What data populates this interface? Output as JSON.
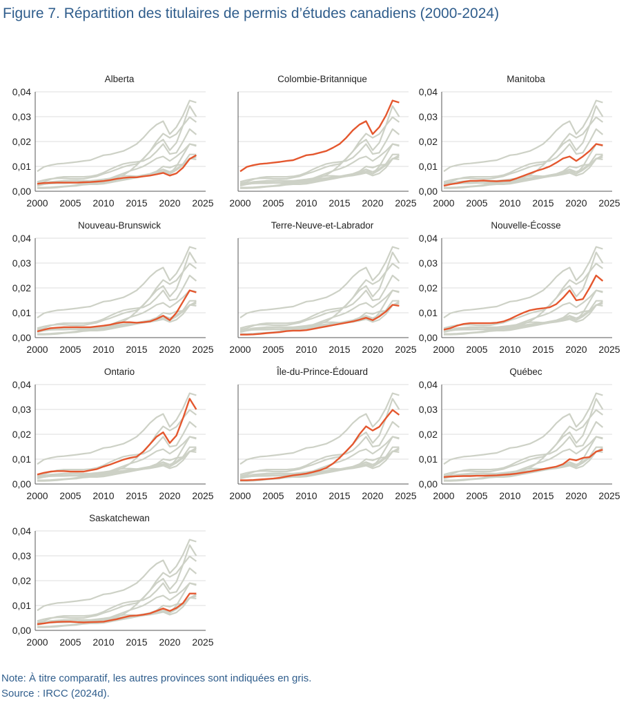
{
  "chart_data": {
    "type": "line",
    "title": "Figure 7. Répartition des titulaires de permis d’études canadiens (2000-2024)",
    "note": "Note: À titre comparatif, les autres provinces sont indiquées en gris.",
    "source": "Source : IRCC (2024d).",
    "x": [
      2000,
      2001,
      2002,
      2003,
      2004,
      2005,
      2006,
      2007,
      2008,
      2009,
      2010,
      2011,
      2012,
      2013,
      2014,
      2015,
      2016,
      2017,
      2018,
      2019,
      2020,
      2021,
      2022,
      2023,
      2024
    ],
    "xticks": [
      "2000",
      "2005",
      "2010",
      "2015",
      "2020",
      "2025"
    ],
    "yticks": [
      "0,00",
      "0,01",
      "0,02",
      "0,03",
      "0,04"
    ],
    "ylim": [
      0,
      0.04
    ],
    "xlim": [
      2000,
      2025
    ],
    "grid": true,
    "highlight_color": "#e4572e",
    "other_color": "#cdd1c6",
    "series": [
      {
        "name": "Alberta",
        "values": [
          0.003,
          0.0033,
          0.0034,
          0.0035,
          0.0035,
          0.0035,
          0.0035,
          0.0036,
          0.0037,
          0.0039,
          0.0041,
          0.0045,
          0.005,
          0.0054,
          0.0056,
          0.0056,
          0.006,
          0.0063,
          0.0068,
          0.0074,
          0.0063,
          0.0072,
          0.0095,
          0.013,
          0.0145
        ]
      },
      {
        "name": "Colombie-Britannique",
        "values": [
          0.008,
          0.0098,
          0.0105,
          0.011,
          0.0112,
          0.0115,
          0.0118,
          0.0122,
          0.0125,
          0.0135,
          0.0145,
          0.0148,
          0.0155,
          0.0162,
          0.0175,
          0.019,
          0.0215,
          0.0245,
          0.0268,
          0.0282,
          0.023,
          0.0258,
          0.0305,
          0.0365,
          0.0357
        ]
      },
      {
        "name": "Manitoba",
        "values": [
          0.0022,
          0.0028,
          0.0032,
          0.0038,
          0.0042,
          0.0042,
          0.0043,
          0.0041,
          0.004,
          0.0042,
          0.0043,
          0.0052,
          0.0062,
          0.0072,
          0.0082,
          0.009,
          0.01,
          0.0115,
          0.0132,
          0.014,
          0.0122,
          0.014,
          0.0162,
          0.019,
          0.0185
        ]
      },
      {
        "name": "Nouveau-Brunswick",
        "values": [
          0.0025,
          0.0032,
          0.0038,
          0.004,
          0.0042,
          0.0042,
          0.0042,
          0.0042,
          0.0042,
          0.0045,
          0.0048,
          0.0052,
          0.0058,
          0.0062,
          0.0062,
          0.006,
          0.0062,
          0.0065,
          0.0075,
          0.0088,
          0.007,
          0.01,
          0.0145,
          0.019,
          0.0182
        ]
      },
      {
        "name": "Terre-Neuve-et-Labrador",
        "values": [
          0.0012,
          0.0012,
          0.0013,
          0.0015,
          0.0018,
          0.002,
          0.0022,
          0.0026,
          0.0028,
          0.0028,
          0.003,
          0.0035,
          0.004,
          0.0045,
          0.005,
          0.0055,
          0.006,
          0.0065,
          0.0072,
          0.008,
          0.007,
          0.0085,
          0.0105,
          0.0132,
          0.0128
        ]
      },
      {
        "name": "Nouvelle-Écosse",
        "values": [
          0.0032,
          0.0038,
          0.0048,
          0.0055,
          0.0058,
          0.0058,
          0.0058,
          0.0058,
          0.006,
          0.0065,
          0.0075,
          0.0088,
          0.01,
          0.011,
          0.0115,
          0.0118,
          0.0122,
          0.0135,
          0.016,
          0.019,
          0.015,
          0.0155,
          0.02,
          0.025,
          0.0228
        ]
      },
      {
        "name": "Ontario",
        "values": [
          0.0038,
          0.0045,
          0.005,
          0.0052,
          0.0052,
          0.005,
          0.005,
          0.005,
          0.0055,
          0.006,
          0.007,
          0.0078,
          0.0088,
          0.0098,
          0.0105,
          0.011,
          0.013,
          0.016,
          0.019,
          0.0208,
          0.0165,
          0.0195,
          0.0265,
          0.0343,
          0.03
        ]
      },
      {
        "name": "Île-du-Prince-Édouard",
        "values": [
          0.0015,
          0.0015,
          0.0016,
          0.0018,
          0.002,
          0.0022,
          0.0025,
          0.003,
          0.0035,
          0.0038,
          0.0042,
          0.0048,
          0.0055,
          0.0065,
          0.0082,
          0.0105,
          0.0132,
          0.016,
          0.02,
          0.0232,
          0.0215,
          0.023,
          0.0265,
          0.0298,
          0.0278
        ]
      },
      {
        "name": "Québec",
        "values": [
          0.0028,
          0.003,
          0.0031,
          0.0032,
          0.0032,
          0.0033,
          0.0033,
          0.0034,
          0.0035,
          0.0037,
          0.0039,
          0.0042,
          0.0046,
          0.005,
          0.0055,
          0.006,
          0.0065,
          0.007,
          0.008,
          0.01,
          0.0095,
          0.0105,
          0.0108,
          0.013,
          0.0138
        ]
      },
      {
        "name": "Saskatchewan",
        "values": [
          0.0025,
          0.0028,
          0.0032,
          0.0034,
          0.0035,
          0.0035,
          0.0033,
          0.0032,
          0.0033,
          0.0034,
          0.0035,
          0.004,
          0.0045,
          0.0052,
          0.0058,
          0.006,
          0.0063,
          0.0068,
          0.0078,
          0.0088,
          0.0078,
          0.009,
          0.011,
          0.0148,
          0.0148
        ]
      }
    ]
  }
}
